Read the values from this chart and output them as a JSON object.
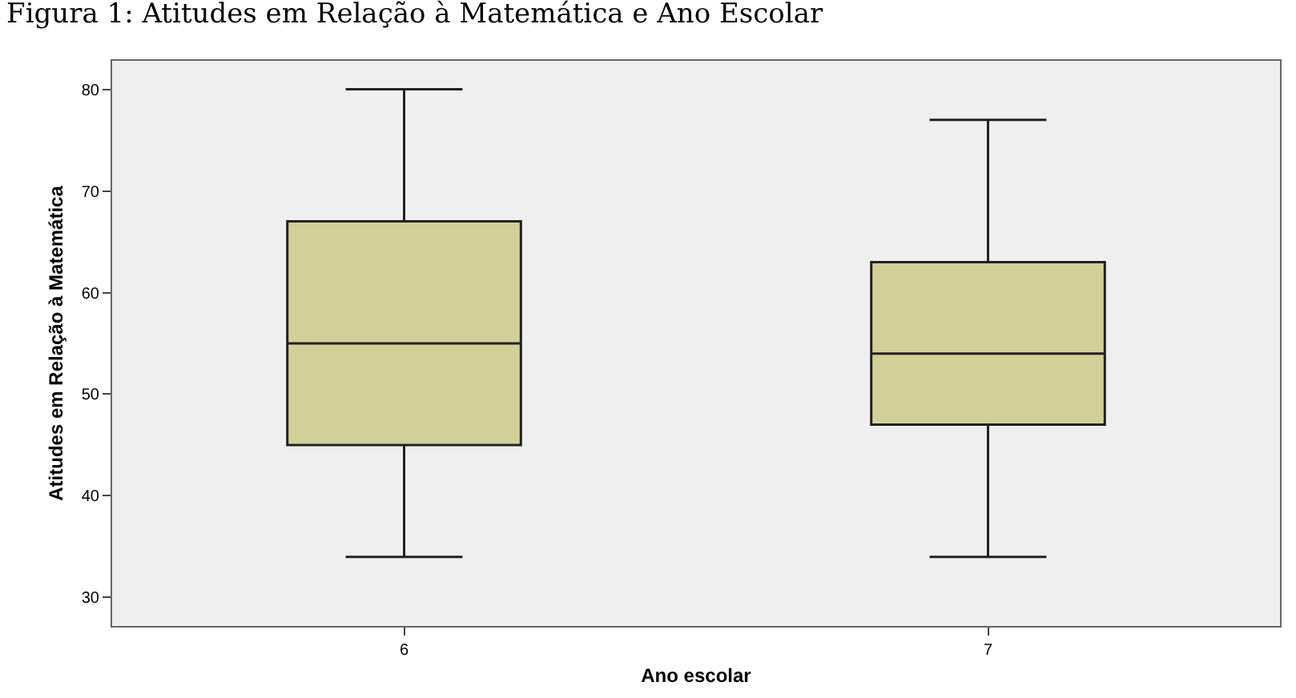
{
  "chart_data": {
    "type": "box",
    "title": "Figura 1: Atitudes em Relação à Matemática e Ano Escolar",
    "xlabel": "Ano escolar",
    "ylabel": "Atitudes em Relação à Matemática",
    "categories": [
      "6",
      "7"
    ],
    "boxes": [
      {
        "low": 34,
        "q1": 45,
        "median": 55,
        "q3": 67,
        "high": 80
      },
      {
        "low": 34,
        "q1": 47,
        "median": 54,
        "q3": 63,
        "high": 77
      }
    ],
    "color": "#d3cf98",
    "ylim": [
      27.2,
      82.8
    ],
    "yticks": [
      30,
      40,
      50,
      60,
      70,
      80
    ],
    "grid": false
  }
}
